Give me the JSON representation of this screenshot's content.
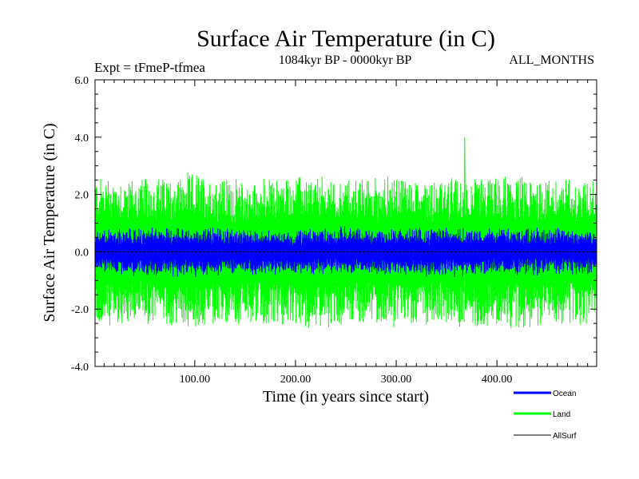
{
  "chart_data": {
    "type": "line",
    "title": "Surface Air Temperature (in C)",
    "subtitle_left": "Expt = tFmeP-tfmea",
    "subtitle_center": "1084kyr BP - 0000kyr BP",
    "subtitle_right": "ALL_MONTHS",
    "xlabel": "Time (in years since start)",
    "ylabel": "Surface Air Temperature (in C)",
    "xlim": [
      1,
      499
    ],
    "ylim": [
      -4.0,
      6.0
    ],
    "x_ticks": [
      100,
      200,
      300,
      400
    ],
    "x_tick_labels": [
      "100.00",
      "200.00",
      "300.00",
      "400.00"
    ],
    "y_ticks": [
      -4,
      -2,
      0,
      2,
      4,
      6
    ],
    "y_tick_labels": [
      "-4.0",
      "-2.0",
      "0.0",
      "2.0",
      "4.0",
      "6.0"
    ],
    "legend_position": "bottom-right",
    "series": [
      {
        "name": "Ocean",
        "color": "#0000ff",
        "description": "Band of variability roughly between -0.8 and +0.9",
        "upper_envelope": [
          [
            1,
            0.7
          ],
          [
            50,
            0.75
          ],
          [
            100,
            0.8
          ],
          [
            150,
            0.75
          ],
          [
            200,
            0.7
          ],
          [
            250,
            0.8
          ],
          [
            300,
            0.75
          ],
          [
            350,
            0.8
          ],
          [
            400,
            0.75
          ],
          [
            450,
            0.8
          ],
          [
            499,
            0.7
          ]
        ],
        "lower_envelope": [
          [
            1,
            -0.7
          ],
          [
            50,
            -0.75
          ],
          [
            100,
            -0.8
          ],
          [
            150,
            -0.7
          ],
          [
            200,
            -0.75
          ],
          [
            250,
            -0.7
          ],
          [
            300,
            -0.75
          ],
          [
            350,
            -0.8
          ],
          [
            400,
            -0.7
          ],
          [
            450,
            -0.75
          ],
          [
            499,
            -0.7
          ]
        ]
      },
      {
        "name": "Land",
        "color": "#00ff00",
        "description": "Band of variability roughly between -2.8 and +2.8",
        "upper_envelope": [
          [
            1,
            2.6
          ],
          [
            50,
            2.5
          ],
          [
            100,
            2.7
          ],
          [
            150,
            2.4
          ],
          [
            200,
            2.6
          ],
          [
            250,
            2.5
          ],
          [
            300,
            2.6
          ],
          [
            350,
            2.5
          ],
          [
            400,
            2.6
          ],
          [
            450,
            2.5
          ],
          [
            499,
            2.5
          ]
        ],
        "lower_envelope": [
          [
            1,
            -2.6
          ],
          [
            50,
            -2.5
          ],
          [
            100,
            -2.6
          ],
          [
            150,
            -2.5
          ],
          [
            200,
            -2.6
          ],
          [
            250,
            -2.5
          ],
          [
            300,
            -2.6
          ],
          [
            350,
            -2.5
          ],
          [
            400,
            -2.6
          ],
          [
            450,
            -2.5
          ],
          [
            499,
            -2.5
          ]
        ],
        "peak": [
          368,
          4.0
        ]
      },
      {
        "name": "AllSurf",
        "color": "#000000",
        "description": "Near-zero line"
      }
    ]
  }
}
